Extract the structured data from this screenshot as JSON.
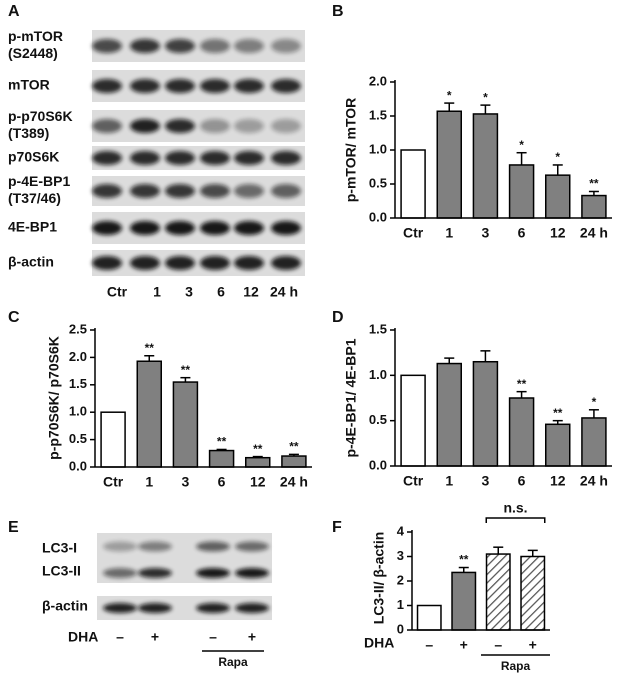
{
  "blots": [
    {
      "letter": "A",
      "rows": [
        [
          "p-mTOR",
          "(S2448)"
        ],
        [
          "mTOR"
        ],
        [
          "p-p70S6K",
          "(T389)"
        ],
        [
          "p70S6K"
        ],
        [
          "p-4E-BP1",
          "(T37/46)"
        ],
        [
          "4E-BP1"
        ],
        [
          "β-actin"
        ]
      ],
      "lanes": [
        "Ctr",
        "1",
        "3",
        "6",
        "12",
        "24 h"
      ]
    },
    {
      "letter": "E",
      "rows": [
        [
          "LC3-I"
        ],
        [
          "LC3-II"
        ],
        [
          "β-actin"
        ]
      ],
      "treatment_label": "DHA",
      "lanes": [
        "–",
        "+",
        "–",
        "+"
      ],
      "group_label": "Rapa"
    }
  ],
  "chart_data": [
    {
      "type": "bar",
      "letter": "B",
      "y_label": "p-mTOR/ mTOR",
      "categories": [
        "Ctr",
        "1",
        "3",
        "6",
        "12",
        "24 h"
      ],
      "values": [
        1.0,
        1.57,
        1.53,
        0.78,
        0.63,
        0.33
      ],
      "errors": [
        null,
        0.12,
        0.13,
        0.18,
        0.15,
        0.06
      ],
      "significance": [
        null,
        "*",
        "*",
        "*",
        "*",
        "**"
      ],
      "colors": [
        "#ffffff",
        "#808080",
        "#808080",
        "#808080",
        "#808080",
        "#808080"
      ],
      "ylim": [
        0,
        2
      ],
      "yticks": [
        {
          "value": 0,
          "label": "0.0"
        },
        0.5,
        {
          "value": 1,
          "label": "1.0"
        },
        1.5,
        {
          "value": 2,
          "label": "2.0"
        }
      ]
    },
    {
      "type": "bar",
      "letter": "C",
      "y_label": "p-p70S6K/ p70S6K",
      "categories": [
        "Ctr",
        "1",
        "3",
        "6",
        "12",
        "24 h"
      ],
      "values": [
        1.0,
        1.93,
        1.55,
        0.3,
        0.17,
        0.2
      ],
      "errors": [
        null,
        0.1,
        0.08,
        0.02,
        0.02,
        0.03
      ],
      "significance": [
        null,
        "**",
        "**",
        "**",
        "**",
        "**"
      ],
      "colors": [
        "#ffffff",
        "#808080",
        "#808080",
        "#808080",
        "#808080",
        "#808080"
      ],
      "ylim": [
        0,
        2.5
      ],
      "yticks": [
        {
          "value": 0,
          "label": "0.0"
        },
        0.5,
        {
          "value": 1,
          "label": "1.0"
        },
        1.5,
        {
          "value": 2,
          "label": "2.0"
        },
        2.5
      ]
    },
    {
      "type": "bar",
      "letter": "D",
      "y_label": "p-4E-BP1/ 4E-BP1",
      "categories": [
        "Ctr",
        "1",
        "3",
        "6",
        "12",
        "24 h"
      ],
      "values": [
        1.0,
        1.13,
        1.15,
        0.75,
        0.46,
        0.53
      ],
      "errors": [
        null,
        0.06,
        0.12,
        0.07,
        0.04,
        0.09
      ],
      "significance": [
        null,
        null,
        null,
        "**",
        "**",
        "*"
      ],
      "colors": [
        "#ffffff",
        "#808080",
        "#808080",
        "#808080",
        "#808080",
        "#808080"
      ],
      "ylim": [
        0,
        1.5
      ],
      "yticks": [
        {
          "value": 0,
          "label": "0.0"
        },
        0.5,
        {
          "value": 1,
          "label": "1.0"
        },
        1.5
      ]
    },
    {
      "type": "bar",
      "letter": "F",
      "y_label": "LC3-II/ β-actin",
      "x_label": "DHA",
      "group_label": "Rapa",
      "bracket_label": "n.s.",
      "categories": [
        "–",
        "+",
        "–",
        "+"
      ],
      "values": [
        1.0,
        2.35,
        3.1,
        3.0
      ],
      "errors": [
        null,
        0.2,
        0.28,
        0.25
      ],
      "significance": [
        null,
        "**",
        null,
        null
      ],
      "colors": [
        "#ffffff",
        "#808080",
        "#ffffff",
        "#808080"
      ],
      "hatched": [
        false,
        false,
        true,
        true
      ],
      "ylim": [
        0,
        4
      ],
      "yticks": [
        0,
        1,
        2,
        3,
        4
      ]
    }
  ]
}
